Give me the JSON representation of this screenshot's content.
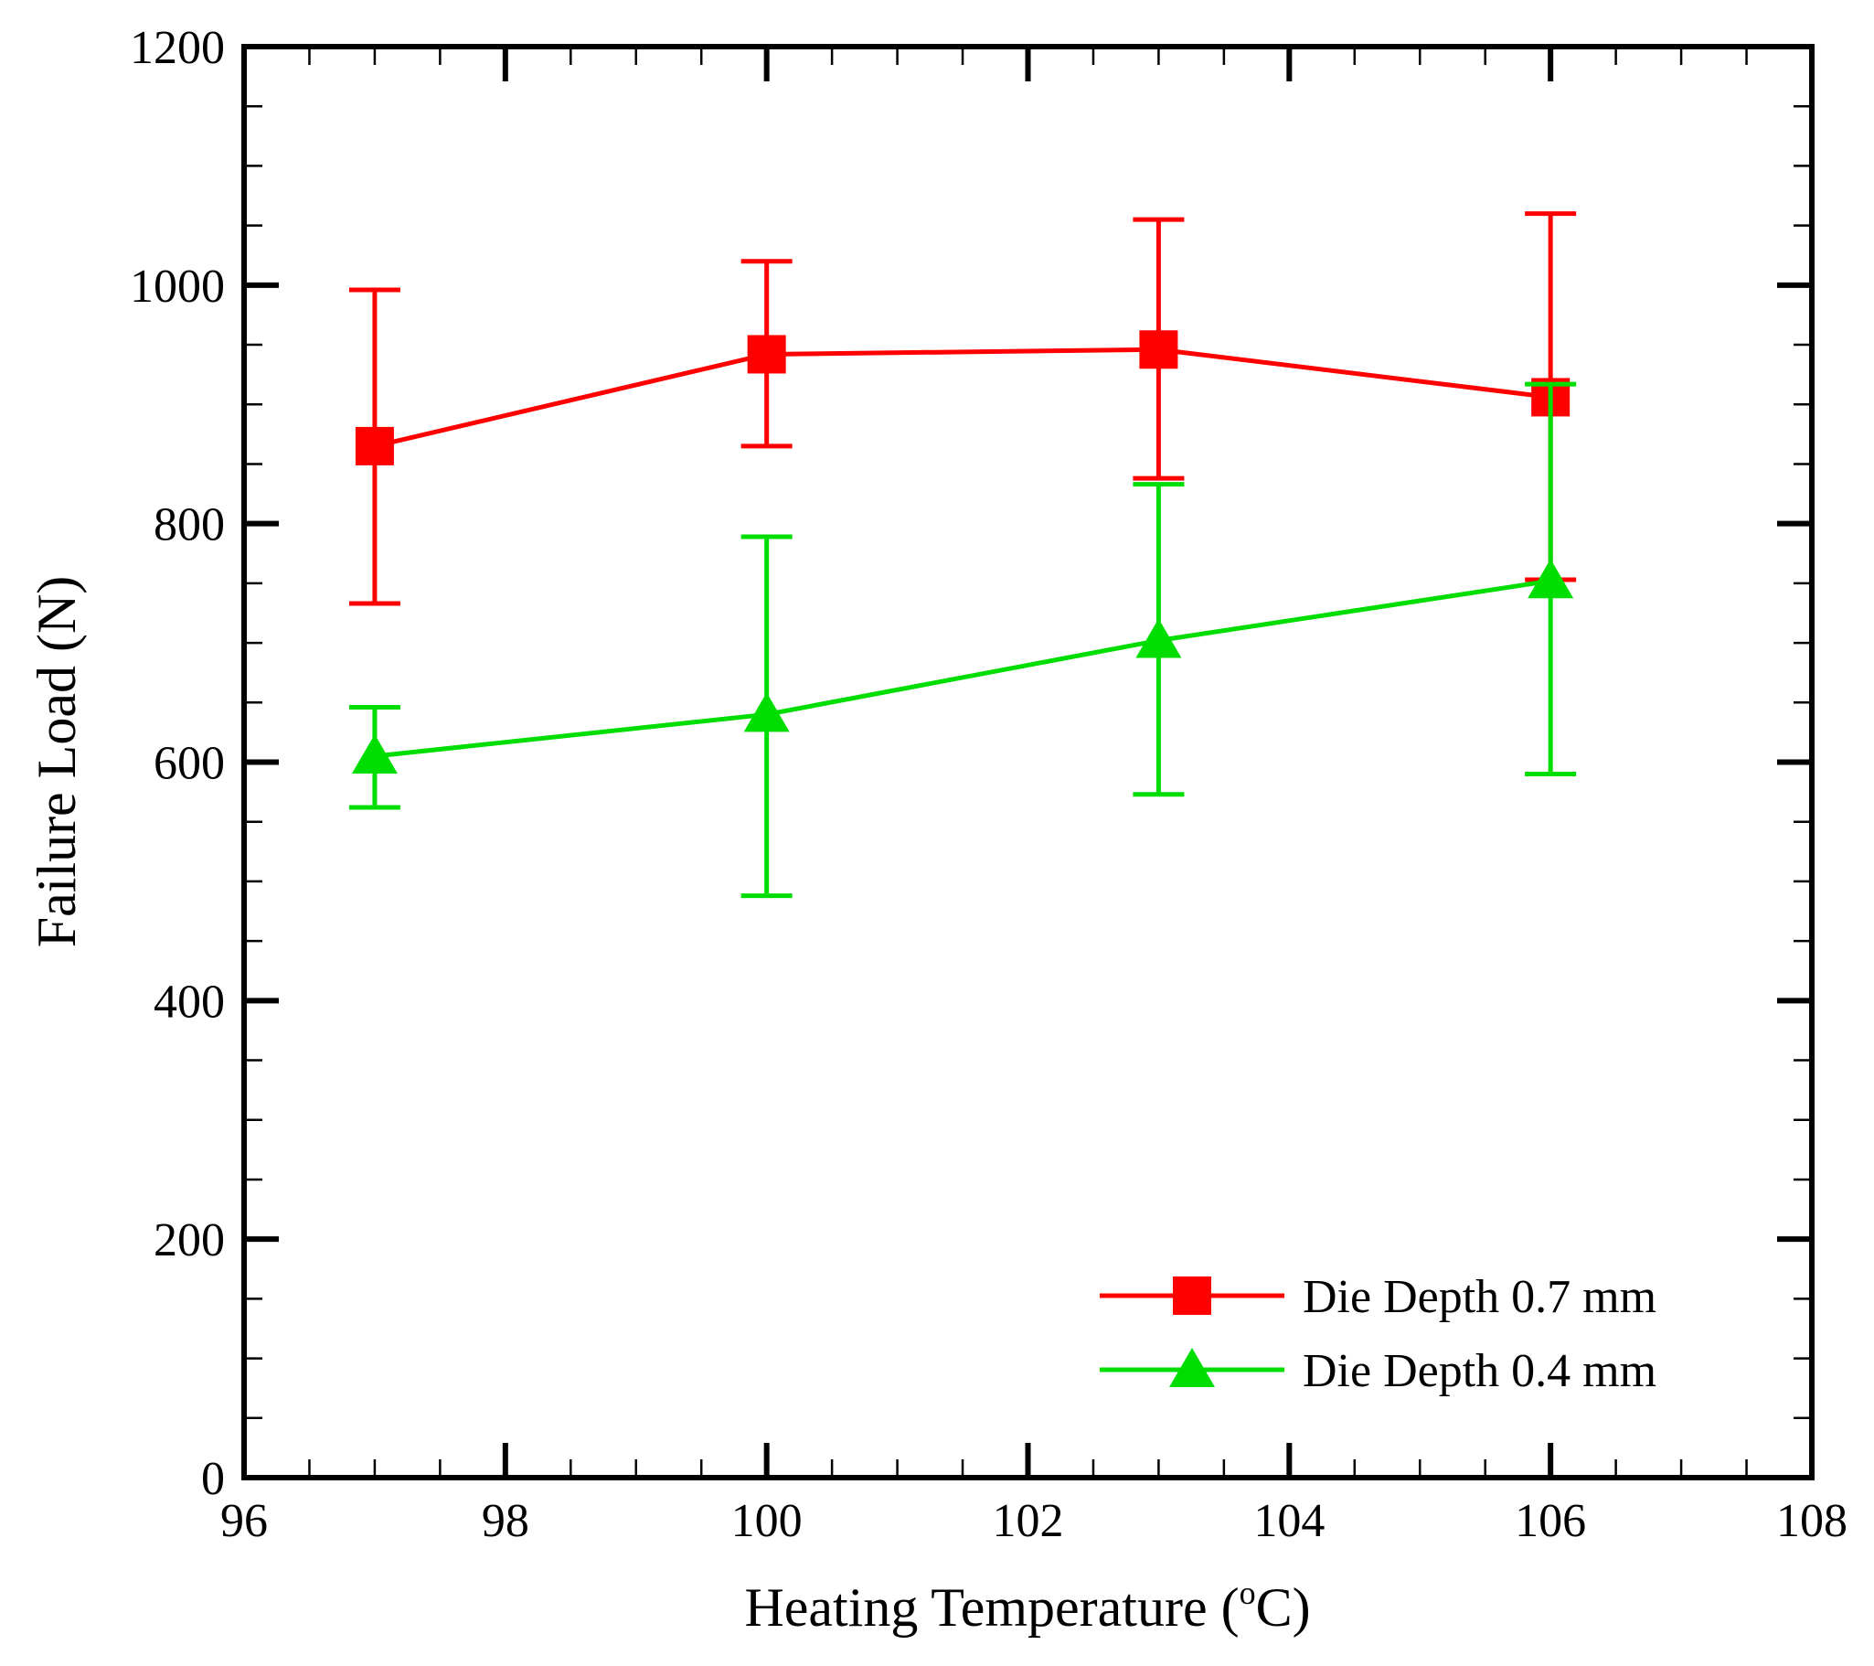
{
  "chart_data": {
    "type": "line",
    "title": "",
    "xlabel": "Heating Temperature (",
    "xlabel_sup": "o",
    "xlabel_end": "C)",
    "ylabel": "Failure Load (N)",
    "xlim": [
      96,
      108
    ],
    "ylim": [
      0,
      1200
    ],
    "xticks": [
      96,
      98,
      100,
      102,
      104,
      106,
      108
    ],
    "yticks": [
      0,
      200,
      400,
      600,
      800,
      1000,
      1200
    ],
    "x_minor_step": 0.5,
    "y_minor_step": 50,
    "grid": false,
    "legend_position": "bottom-right",
    "series": [
      {
        "name": "Die Depth 0.7 mm",
        "color": "#ff0000",
        "marker": "square",
        "x": [
          97,
          100,
          103,
          106
        ],
        "y": [
          865,
          942,
          946,
          906
        ],
        "err_low": [
          733,
          865,
          838,
          753
        ],
        "err_high": [
          996,
          1020,
          1055,
          1060
        ]
      },
      {
        "name": "Die Depth 0.4 mm",
        "color": "#00dd00",
        "marker": "triangle",
        "x": [
          97,
          100,
          103,
          106
        ],
        "y": [
          605,
          640,
          702,
          752
        ],
        "err_low": [
          562,
          488,
          573,
          590
        ],
        "err_high": [
          646,
          789,
          833,
          917
        ]
      }
    ]
  }
}
